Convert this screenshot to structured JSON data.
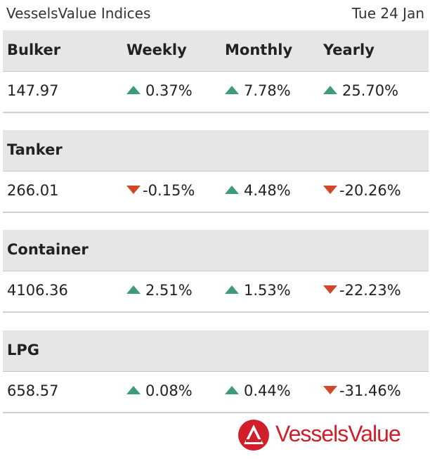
{
  "header": {
    "title": "VesselsValue Indices",
    "date": "Tue 24 Jan"
  },
  "columns": {
    "weekly": "Weekly",
    "monthly": "Monthly",
    "yearly": "Yearly"
  },
  "sections": [
    {
      "name": "Bulker",
      "value": "147.97",
      "weekly": {
        "text": "0.37%",
        "dir": "up"
      },
      "monthly": {
        "text": "7.78%",
        "dir": "up"
      },
      "yearly": {
        "text": "25.70%",
        "dir": "up"
      }
    },
    {
      "name": "Tanker",
      "value": "266.01",
      "weekly": {
        "text": "-0.15%",
        "dir": "down"
      },
      "monthly": {
        "text": "4.48%",
        "dir": "up"
      },
      "yearly": {
        "text": "-20.26%",
        "dir": "down"
      }
    },
    {
      "name": "Container",
      "value": "4106.36",
      "weekly": {
        "text": "2.51%",
        "dir": "up"
      },
      "monthly": {
        "text": "1.53%",
        "dir": "up"
      },
      "yearly": {
        "text": "-22.23%",
        "dir": "down"
      }
    },
    {
      "name": "LPG",
      "value": "658.57",
      "weekly": {
        "text": "0.08%",
        "dir": "up"
      },
      "monthly": {
        "text": "0.44%",
        "dir": "up"
      },
      "yearly": {
        "text": "-31.46%",
        "dir": "down"
      }
    }
  ],
  "logo": {
    "text": "VesselsValue",
    "icon": "vesselsvalue-logo-icon",
    "color": "#d11f2a"
  },
  "colors": {
    "up": "#3e9a7d",
    "down": "#d2462a",
    "header_bg": "#e6e6e6"
  }
}
